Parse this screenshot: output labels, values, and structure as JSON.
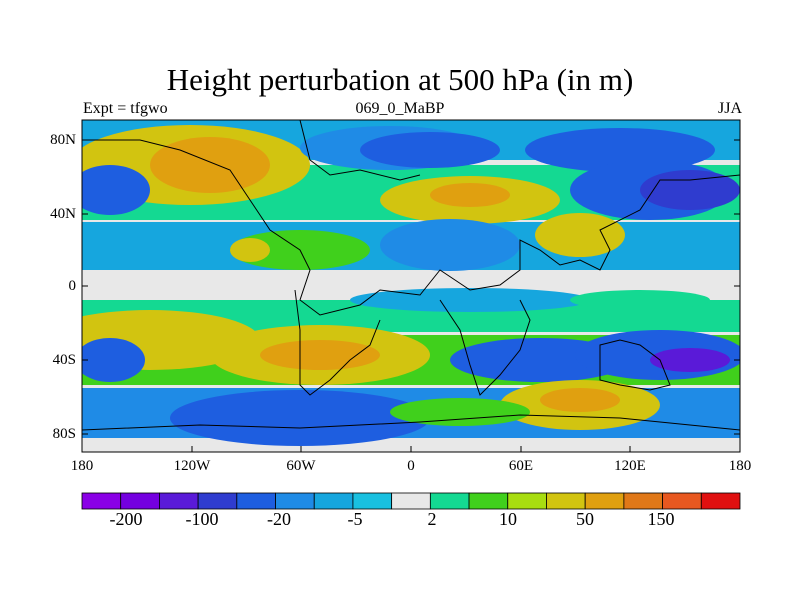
{
  "title": "Height perturbation at 500 hPa (in m)",
  "subtitle_left": "Expt = tfgwo",
  "subtitle_center": "069_0_MaBP",
  "subtitle_right": "JJA",
  "lat_labels": [
    "80N",
    "40N",
    "0",
    "40S",
    "80S"
  ],
  "lon_labels": [
    "180",
    "120W",
    "60W",
    "0",
    "60E",
    "120E",
    "180"
  ],
  "colorbar": {
    "colors": [
      "#8a00e6",
      "#7400e0",
      "#5a1ad8",
      "#2f3ccf",
      "#1e5ee0",
      "#1f8be6",
      "#16a6de",
      "#19c0e0",
      "#e8e8e8",
      "#14d992",
      "#40d01c",
      "#a8dd10",
      "#d2c410",
      "#e0a010",
      "#e07818",
      "#e85820",
      "#e01010"
    ],
    "labels": [
      "-200",
      "-100",
      "-20",
      "-5",
      "2",
      "10",
      "50",
      "150"
    ]
  }
}
